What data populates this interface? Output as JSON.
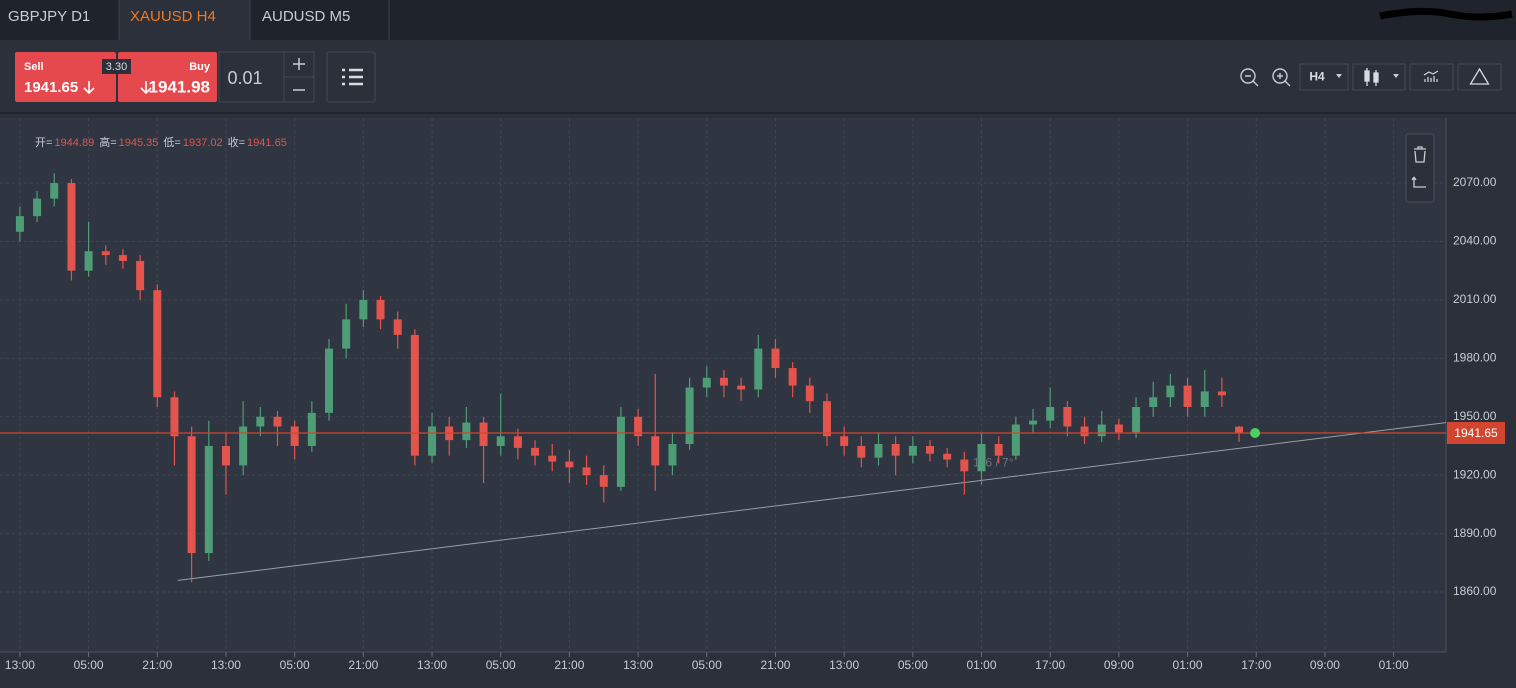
{
  "tabs": [
    "GBPJPY D1",
    "XAUUSD H4",
    "AUDUSD M5"
  ],
  "trade": {
    "sell_label": "Sell",
    "sell_price": "1941.65",
    "spread": "3.30",
    "buy_label": "Buy",
    "buy_price": "1941.98",
    "lot": "0.01"
  },
  "timeframe": "H4",
  "chart": {
    "type": "candlestick",
    "ohlc_labels": [
      "开=",
      "高=",
      "低=",
      "收="
    ],
    "x": [
      0,
      1,
      2,
      3,
      4,
      5,
      6,
      7,
      8,
      9,
      10,
      11,
      12,
      13,
      14,
      15,
      16,
      17,
      18,
      19,
      20,
      21,
      22,
      23,
      24,
      25,
      26,
      27,
      28,
      29,
      30,
      31,
      32,
      33,
      34,
      35,
      36,
      37,
      38,
      39,
      40,
      41,
      42,
      43,
      44,
      45,
      46,
      47,
      48,
      49,
      50,
      51,
      52,
      53,
      54,
      55,
      56,
      57,
      58,
      59,
      60,
      61,
      62,
      63,
      64,
      65,
      66,
      67,
      68,
      69,
      70,
      71
    ],
    "open": [
      2045,
      2053,
      2062,
      2070,
      2025,
      2035,
      2033,
      2030,
      2015,
      1960,
      1940,
      1880,
      1935,
      1925,
      1945,
      1950,
      1945,
      1935,
      1952,
      1985,
      2000,
      2010,
      2000,
      1992,
      1930,
      1945,
      1938,
      1947,
      1935,
      1940,
      1934,
      1930,
      1927,
      1924,
      1920,
      1914,
      1950,
      1940,
      1925,
      1936,
      1965,
      1970,
      1966,
      1964,
      1985,
      1975,
      1966,
      1958,
      1940,
      1935,
      1929,
      1936,
      1930,
      1935,
      1931,
      1928,
      1922,
      1936,
      1930,
      1946,
      1948,
      1955,
      1945,
      1940,
      1946,
      1942,
      1955,
      1960,
      1966,
      1955,
      1963,
      1944.89
    ],
    "high": [
      2058,
      2066,
      2075,
      2072,
      2050,
      2038,
      2036,
      2033,
      2018,
      1963,
      1945,
      1948,
      1942,
      1958,
      1955,
      1953,
      1948,
      1958,
      1990,
      2008,
      2015,
      2012,
      2004,
      1995,
      1952,
      1950,
      1955,
      1950,
      1962,
      1944,
      1938,
      1936,
      1933,
      1930,
      1925,
      1955,
      1954,
      1972,
      1942,
      1970,
      1976,
      1974,
      1970,
      1992,
      1990,
      1978,
      1970,
      1962,
      1945,
      1940,
      1942,
      1940,
      1940,
      1938,
      1934,
      1932,
      1942,
      1940,
      1950,
      1954,
      1965,
      1958,
      1950,
      1953,
      1949,
      1960,
      1968,
      1972,
      1970,
      1974,
      1970,
      1945.35
    ],
    "low": [
      2040,
      2050,
      2058,
      2020,
      2022,
      2028,
      2026,
      2010,
      1955,
      1925,
      1865,
      1876,
      1910,
      1920,
      1940,
      1935,
      1928,
      1932,
      1948,
      1980,
      1996,
      1995,
      1985,
      1925,
      1926,
      1930,
      1934,
      1916,
      1930,
      1928,
      1925,
      1922,
      1916,
      1915,
      1906,
      1912,
      1935,
      1912,
      1920,
      1933,
      1960,
      1960,
      1958,
      1960,
      1970,
      1960,
      1952,
      1935,
      1930,
      1924,
      1925,
      1920,
      1926,
      1927,
      1924,
      1910,
      1915,
      1926,
      1928,
      1942,
      1944,
      1940,
      1936,
      1937,
      1938,
      1939,
      1950,
      1955,
      1950,
      1950,
      1955,
      1937.02
    ],
    "close": [
      2053,
      2062,
      2070,
      2025,
      2035,
      2033,
      2030,
      2015,
      1960,
      1940,
      1880,
      1935,
      1925,
      1945,
      1950,
      1945,
      1935,
      1952,
      1985,
      2000,
      2010,
      2000,
      1992,
      1930,
      1945,
      1938,
      1947,
      1935,
      1940,
      1934,
      1930,
      1927,
      1924,
      1920,
      1914,
      1950,
      1940,
      1925,
      1936,
      1965,
      1970,
      1966,
      1964,
      1985,
      1975,
      1966,
      1958,
      1940,
      1935,
      1929,
      1936,
      1930,
      1935,
      1931,
      1928,
      1922,
      1936,
      1930,
      1946,
      1948,
      1955,
      1945,
      1940,
      1946,
      1942,
      1955,
      1960,
      1966,
      1955,
      1963,
      1961,
      1941.65
    ],
    "up_color": "#4f9d77",
    "down_color": "#e2544c",
    "last_price": 1941.65,
    "last_price_label": "1941.65",
    "trendline": {
      "x": [
        9.2,
        83.05
      ],
      "y": [
        1866,
        1947
      ]
    },
    "trendline_label": "116 / 7°",
    "xlim": [
      -1.16,
      83.05
    ],
    "ylim": [
      1829.2,
      2103.4
    ],
    "xticks": [
      {
        "value": 0,
        "label": "13:00"
      },
      {
        "value": 4,
        "label": "05:00"
      },
      {
        "value": 8,
        "label": "21:00"
      },
      {
        "value": 12,
        "label": "13:00"
      },
      {
        "value": 16,
        "label": "05:00"
      },
      {
        "value": 20,
        "label": "21:00"
      },
      {
        "value": 24,
        "label": "13:00"
      },
      {
        "value": 28,
        "label": "05:00"
      },
      {
        "value": 32,
        "label": "21:00"
      },
      {
        "value": 36,
        "label": "13:00"
      },
      {
        "value": 40,
        "label": "05:00"
      },
      {
        "value": 44,
        "label": "21:00"
      },
      {
        "value": 48,
        "label": "13:00"
      },
      {
        "value": 52,
        "label": "05:00"
      },
      {
        "value": 56,
        "label": "01:00"
      },
      {
        "value": 60,
        "label": "17:00"
      },
      {
        "value": 64,
        "label": "09:00"
      },
      {
        "value": 68,
        "label": "01:00"
      },
      {
        "value": 72,
        "label": "17:00"
      },
      {
        "value": 76,
        "label": "09:00"
      },
      {
        "value": 80,
        "label": "01:00"
      }
    ],
    "yticks": [
      {
        "value": 1860,
        "label": "1860.00"
      },
      {
        "value": 1890,
        "label": "1890.00"
      },
      {
        "value": 1920,
        "label": "1920.00"
      },
      {
        "value": 1950,
        "label": "1950.00"
      },
      {
        "value": 1980,
        "label": "1980.00"
      },
      {
        "value": 2010,
        "label": "2010.00"
      },
      {
        "value": 2040,
        "label": "2040.00"
      },
      {
        "value": 2070,
        "label": "2070.00"
      }
    ],
    "grid": true
  }
}
